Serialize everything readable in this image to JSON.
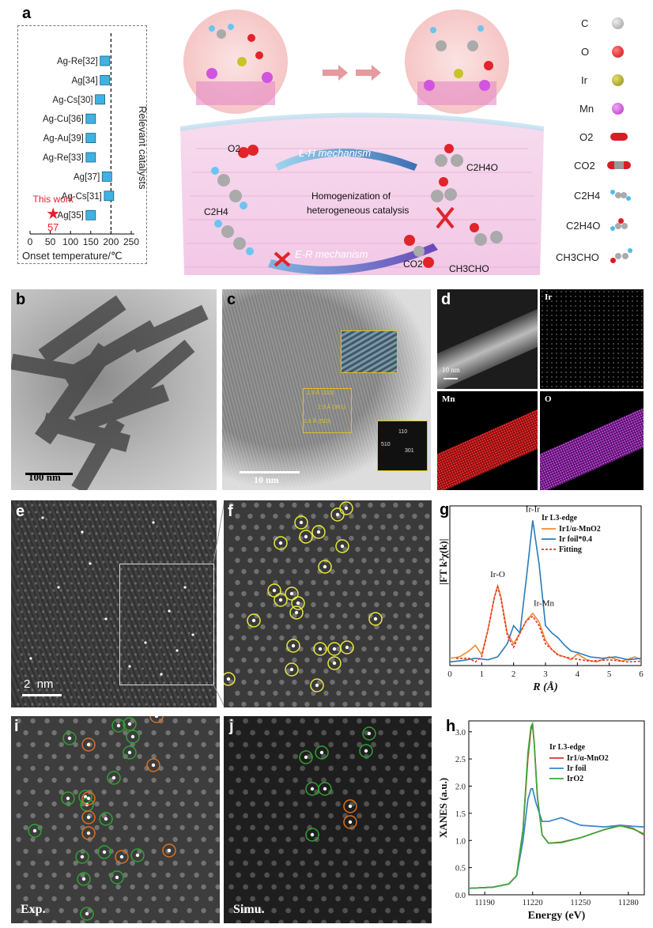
{
  "panel_labels": [
    "a",
    "b",
    "c",
    "d",
    "e",
    "f",
    "g",
    "h",
    "i",
    "j"
  ],
  "panel_a": {
    "chart_data": {
      "type": "scatter",
      "xlabel": "Onset temperature/℃",
      "ylabel": "Relevant catalysts",
      "xticks": [
        0,
        50,
        100,
        150,
        200,
        250
      ],
      "xlim": [
        0,
        250
      ],
      "reference_line_x": 200,
      "series": [
        {
          "name": "Relevant catalysts",
          "marker": "square",
          "color": "#3fb2e4",
          "points": [
            {
              "label": "Ag-Re[32]",
              "x": 185
            },
            {
              "label": "Ag[34]",
              "x": 185
            },
            {
              "label": "Ag-Cs[30]",
              "x": 173
            },
            {
              "label": "Ag-Cu[36]",
              "x": 150
            },
            {
              "label": "Ag-Au[39]",
              "x": 150
            },
            {
              "label": "Ag-Re[33]",
              "x": 150
            },
            {
              "label": "Ag[37]",
              "x": 190
            },
            {
              "label": "Ag-Cs[31]",
              "x": 195
            },
            {
              "label": "Ag[35]",
              "x": 150
            }
          ]
        },
        {
          "name": "This work",
          "marker": "star",
          "color": "#e8212a",
          "points": [
            {
              "x": 57,
              "value_label": "57"
            }
          ]
        }
      ]
    }
  },
  "schematic": {
    "lh": "L-H mechanism",
    "er": "E-R mechanism",
    "center": [
      "Homogenization of",
      "heterogeneous catalysis"
    ],
    "o2": "O2",
    "c2h4": "C2H4",
    "c2h4o": "C2H4O",
    "co2": "CO2",
    "ch3cho": "CH3CHO"
  },
  "legend": {
    "items": [
      {
        "label": "C",
        "color": "#b5b5b5"
      },
      {
        "label": "O",
        "color": "#e0242a"
      },
      {
        "label": "Ir",
        "color": "#b4b21f"
      },
      {
        "label": "Mn",
        "color": "#d154de"
      },
      {
        "label": "O2",
        "color": "#e0242a"
      },
      {
        "label": "CO2",
        "color": "#e0242a"
      },
      {
        "label": "C2H4",
        "color": "#4fbde8"
      },
      {
        "label": "C2H4O",
        "color": "#4fbde8"
      },
      {
        "label": "CH3CHO",
        "color": "#4fbde8"
      }
    ]
  },
  "panel_b": {
    "scale": "100 nm"
  },
  "panel_c": {
    "scale": "10 nm",
    "fft": [
      "110",
      "510",
      "301"
    ],
    "lattice": [
      "2.3 Å (310)",
      "2.3 Å (301)",
      "1.8 Å (510)"
    ]
  },
  "panel_d": {
    "scale": "10 nm",
    "maps": [
      "Ir",
      "Mn",
      "O"
    ],
    "colors": [
      "#e02020",
      "#b030c0"
    ]
  },
  "panel_e": {
    "scale": "2  nm"
  },
  "panel_g": {
    "chart_data": {
      "type": "line",
      "xlabel": "R (Å)",
      "ylabel": "|FT k³χ(k)|",
      "xlim": [
        0,
        6
      ],
      "xticks": [
        0,
        1,
        2,
        3,
        4,
        5,
        6
      ],
      "legend_title": "Ir L3-edge",
      "legend_position": "top-right",
      "annotations": [
        "Ir-Ir",
        "Ir-O",
        "Ir-Mn"
      ],
      "series": [
        {
          "name": "Ir1/α-MnO2",
          "color": "#f08a2c",
          "x": [
            0,
            0.3,
            0.6,
            0.8,
            1.0,
            1.2,
            1.4,
            1.5,
            1.6,
            1.8,
            2.0,
            2.2,
            2.4,
            2.6,
            2.8,
            3.0,
            3.2,
            3.4,
            3.6,
            3.8,
            4.0,
            4.3,
            4.6,
            5.0,
            5.4,
            5.8,
            6.0
          ],
          "y": [
            0.1,
            0.12,
            0.2,
            0.28,
            0.15,
            0.5,
            0.95,
            1.1,
            0.95,
            0.45,
            0.3,
            0.45,
            0.62,
            0.72,
            0.6,
            0.35,
            0.22,
            0.15,
            0.12,
            0.08,
            0.16,
            0.08,
            0.05,
            0.12,
            0.06,
            0.12,
            0.08
          ]
        },
        {
          "name": "Ir foil*0.4",
          "color": "#2a7bb8",
          "x": [
            0,
            0.4,
            0.8,
            1.2,
            1.5,
            1.8,
            2.0,
            2.2,
            2.4,
            2.6,
            2.8,
            3.0,
            3.2,
            3.4,
            3.6,
            3.8,
            4.0,
            4.4,
            4.8,
            5.2,
            5.6,
            6.0
          ],
          "y": [
            0.05,
            0.07,
            0.1,
            0.08,
            0.12,
            0.3,
            0.55,
            0.45,
            1.2,
            2.0,
            1.4,
            0.55,
            0.45,
            0.38,
            0.28,
            0.2,
            0.18,
            0.12,
            0.1,
            0.12,
            0.08,
            0.1
          ]
        },
        {
          "name": "Fitting",
          "color": "#e83030",
          "dash": true,
          "x": [
            0.2,
            0.6,
            0.8,
            1.0,
            1.2,
            1.4,
            1.5,
            1.6,
            1.8,
            2.0,
            2.2,
            2.4,
            2.6,
            2.8,
            3.0,
            3.4,
            3.8,
            4.4,
            5.0,
            5.6,
            6.0
          ],
          "y": [
            0.1,
            0.1,
            0.05,
            0.12,
            0.5,
            0.95,
            1.08,
            0.93,
            0.42,
            0.25,
            0.45,
            0.62,
            0.68,
            0.55,
            0.3,
            0.14,
            0.1,
            0.06,
            0.08,
            0.05,
            0.06
          ]
        }
      ]
    }
  },
  "panel_h": {
    "chart_data": {
      "type": "line",
      "xlabel": "Energy (eV)",
      "ylabel": "XANES (a.u.)",
      "xlim": [
        11180,
        11290
      ],
      "ylim": [
        0,
        3.2
      ],
      "xticks": [
        11190,
        11220,
        11250,
        11280
      ],
      "yticks": [
        "0.0",
        "0.5",
        "1.0",
        "1.5",
        "2.0",
        "2.5",
        "3.0"
      ],
      "legend_title": "Ir L3-edge",
      "legend_position": "top-right",
      "series": [
        {
          "name": "Ir1/α-MnO2",
          "color": "#e03030",
          "x": [
            11180,
            11195,
            11205,
            11210,
            11214,
            11217,
            11219,
            11220,
            11221,
            11223,
            11226,
            11230,
            11238,
            11250,
            11265,
            11275,
            11283,
            11290
          ],
          "y": [
            0.12,
            0.14,
            0.2,
            0.35,
            1.2,
            2.5,
            3.05,
            3.1,
            2.8,
            1.8,
            1.1,
            0.95,
            0.97,
            1.05,
            1.2,
            1.28,
            1.22,
            1.1
          ]
        },
        {
          "name": "Ir foil",
          "color": "#3a85c8",
          "x": [
            11180,
            11195,
            11205,
            11210,
            11214,
            11217,
            11219,
            11220,
            11222,
            11226,
            11230,
            11238,
            11250,
            11265,
            11275,
            11283,
            11290
          ],
          "y": [
            0.12,
            0.14,
            0.2,
            0.35,
            1.0,
            1.75,
            1.95,
            1.95,
            1.7,
            1.35,
            1.35,
            1.42,
            1.28,
            1.25,
            1.28,
            1.26,
            1.25
          ]
        },
        {
          "name": "IrO2",
          "color": "#3aa83a",
          "x": [
            11180,
            11195,
            11205,
            11210,
            11214,
            11217,
            11219,
            11220,
            11221,
            11223,
            11226,
            11230,
            11238,
            11250,
            11265,
            11275,
            11283,
            11290
          ],
          "y": [
            0.12,
            0.14,
            0.2,
            0.35,
            1.2,
            2.6,
            3.1,
            3.15,
            2.8,
            1.8,
            1.1,
            0.95,
            0.96,
            1.05,
            1.2,
            1.27,
            1.21,
            1.12
          ]
        }
      ]
    }
  },
  "panel_i": {
    "caption": "Exp."
  },
  "panel_j": {
    "caption": "Simu."
  }
}
